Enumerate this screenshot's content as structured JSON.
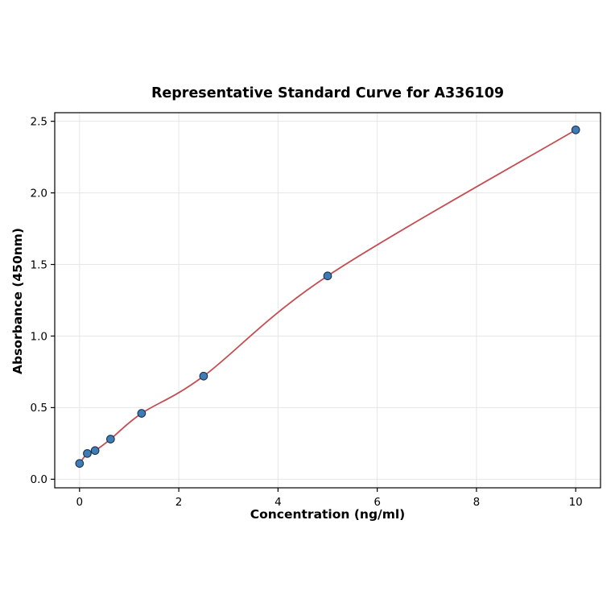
{
  "chart_data": {
    "type": "scatter",
    "title": "Representative Standard Curve for A336109",
    "xlabel": "Concentration (ng/ml)",
    "ylabel": "Absorbance (450nm)",
    "x": [
      0,
      0.156,
      0.313,
      0.625,
      1.25,
      2.5,
      5,
      10
    ],
    "y": [
      0.11,
      0.18,
      0.2,
      0.28,
      0.46,
      0.72,
      1.42,
      2.44
    ],
    "fit_line": true,
    "xlim": [
      -0.5,
      10.5
    ],
    "ylim": [
      -0.06,
      2.56
    ],
    "xticks": [
      0,
      2,
      4,
      6,
      8,
      10
    ],
    "xtick_labels": [
      "0",
      "2",
      "4",
      "6",
      "8",
      "10"
    ],
    "yticks": [
      0,
      0.5,
      1.0,
      1.5,
      2.0,
      2.5
    ],
    "ytick_labels": [
      "0.0",
      "0.5",
      "1.0",
      "1.5",
      "2.0",
      "2.5"
    ],
    "grid": true,
    "legend": "none",
    "colors": {
      "marker_fill": "#3f7cb6",
      "marker_edge": "#1a3350",
      "line": "#c44e52",
      "grid": "#e6e6e6",
      "axis": "#000000",
      "background": "#ffffff"
    }
  }
}
